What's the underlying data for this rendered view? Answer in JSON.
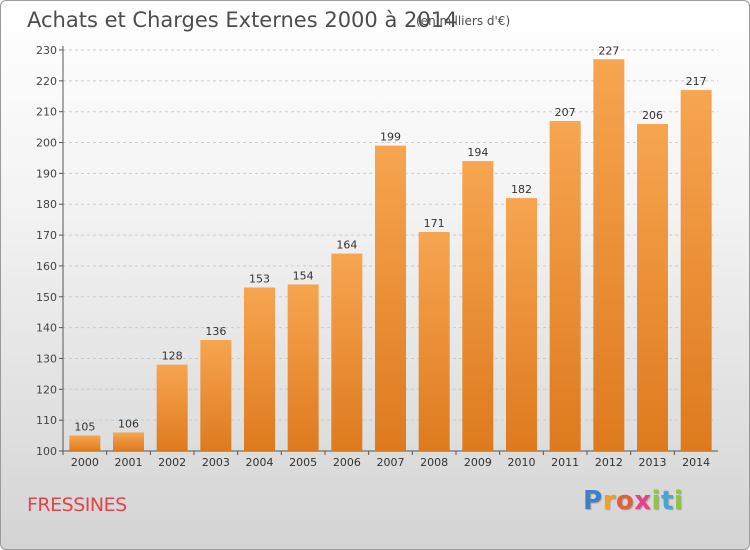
{
  "header": {
    "title": "Achats et Charges Externes 2000 à 2014",
    "subtitle": "(en milliers d'€)"
  },
  "footer": {
    "commune": "FRESSINES",
    "logo_letters": [
      "P",
      "r",
      "o",
      "x",
      "i",
      "t",
      "i"
    ]
  },
  "colors": {
    "bar_top": "#f7a550",
    "bar_bottom": "#de7a1e",
    "grid": "#cccccc",
    "commune_text": "#e0454c"
  },
  "chart_data": {
    "type": "bar",
    "categories": [
      "2000",
      "2001",
      "2002",
      "2003",
      "2004",
      "2005",
      "2006",
      "2007",
      "2008",
      "2009",
      "2010",
      "2011",
      "2012",
      "2013",
      "2014"
    ],
    "values": [
      105,
      106,
      128,
      136,
      153,
      154,
      164,
      199,
      171,
      194,
      182,
      207,
      227,
      206,
      217
    ],
    "ylim": [
      100,
      230
    ],
    "yticks": [
      100,
      110,
      120,
      130,
      140,
      150,
      160,
      170,
      180,
      190,
      200,
      210,
      220,
      230
    ],
    "grid": true,
    "data_labels": true
  }
}
